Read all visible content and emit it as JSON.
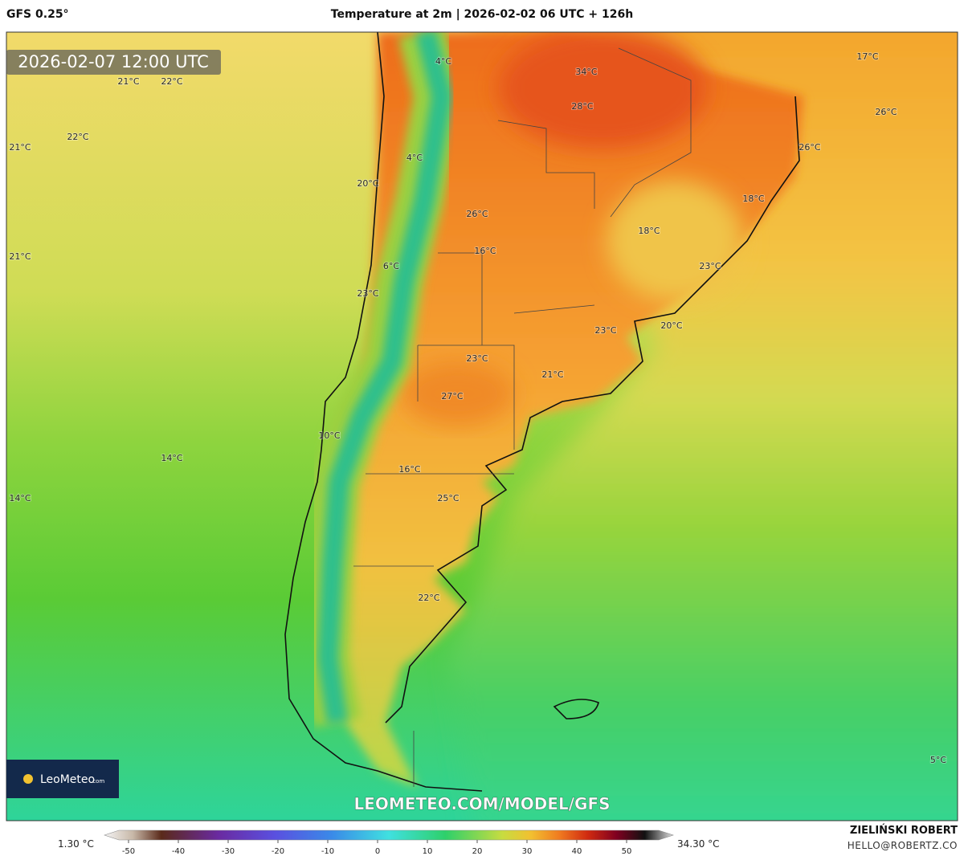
{
  "header": {
    "model": "GFS 0.25°",
    "title": "Temperature at 2m | 2026-02-02 06 UTC + 126h"
  },
  "map": {
    "valid_time": "2026-02-07 12:00 UTC",
    "labels": [
      "21°C",
      "22°C",
      "4°C",
      "34°C",
      "17°C",
      "28°C",
      "26°C",
      "21°C",
      "22°C",
      "26°C",
      "4°C",
      "20°C",
      "18°C",
      "26°C",
      "18°C",
      "21°C",
      "16°C",
      "6°C",
      "23°C",
      "23°C",
      "20°C",
      "23°C",
      "23°C",
      "21°C",
      "27°C",
      "10°C",
      "14°C",
      "16°C",
      "14°C",
      "25°C",
      "22°C",
      "5°C"
    ],
    "watermark": "LEOMETEO.COM/MODEL/GFS",
    "logo": {
      "name": "LeoMeteo",
      "suffix": ".com"
    }
  },
  "legend": {
    "min": "1.30 °C",
    "max": "34.30 °C",
    "ticks": [
      -50,
      -40,
      -30,
      -20,
      -10,
      0,
      10,
      20,
      30,
      40,
      50
    ]
  },
  "credit": {
    "author": "ZIELIŃSKI ROBERT",
    "email": "HELLO@ROBERTZ.CO"
  }
}
